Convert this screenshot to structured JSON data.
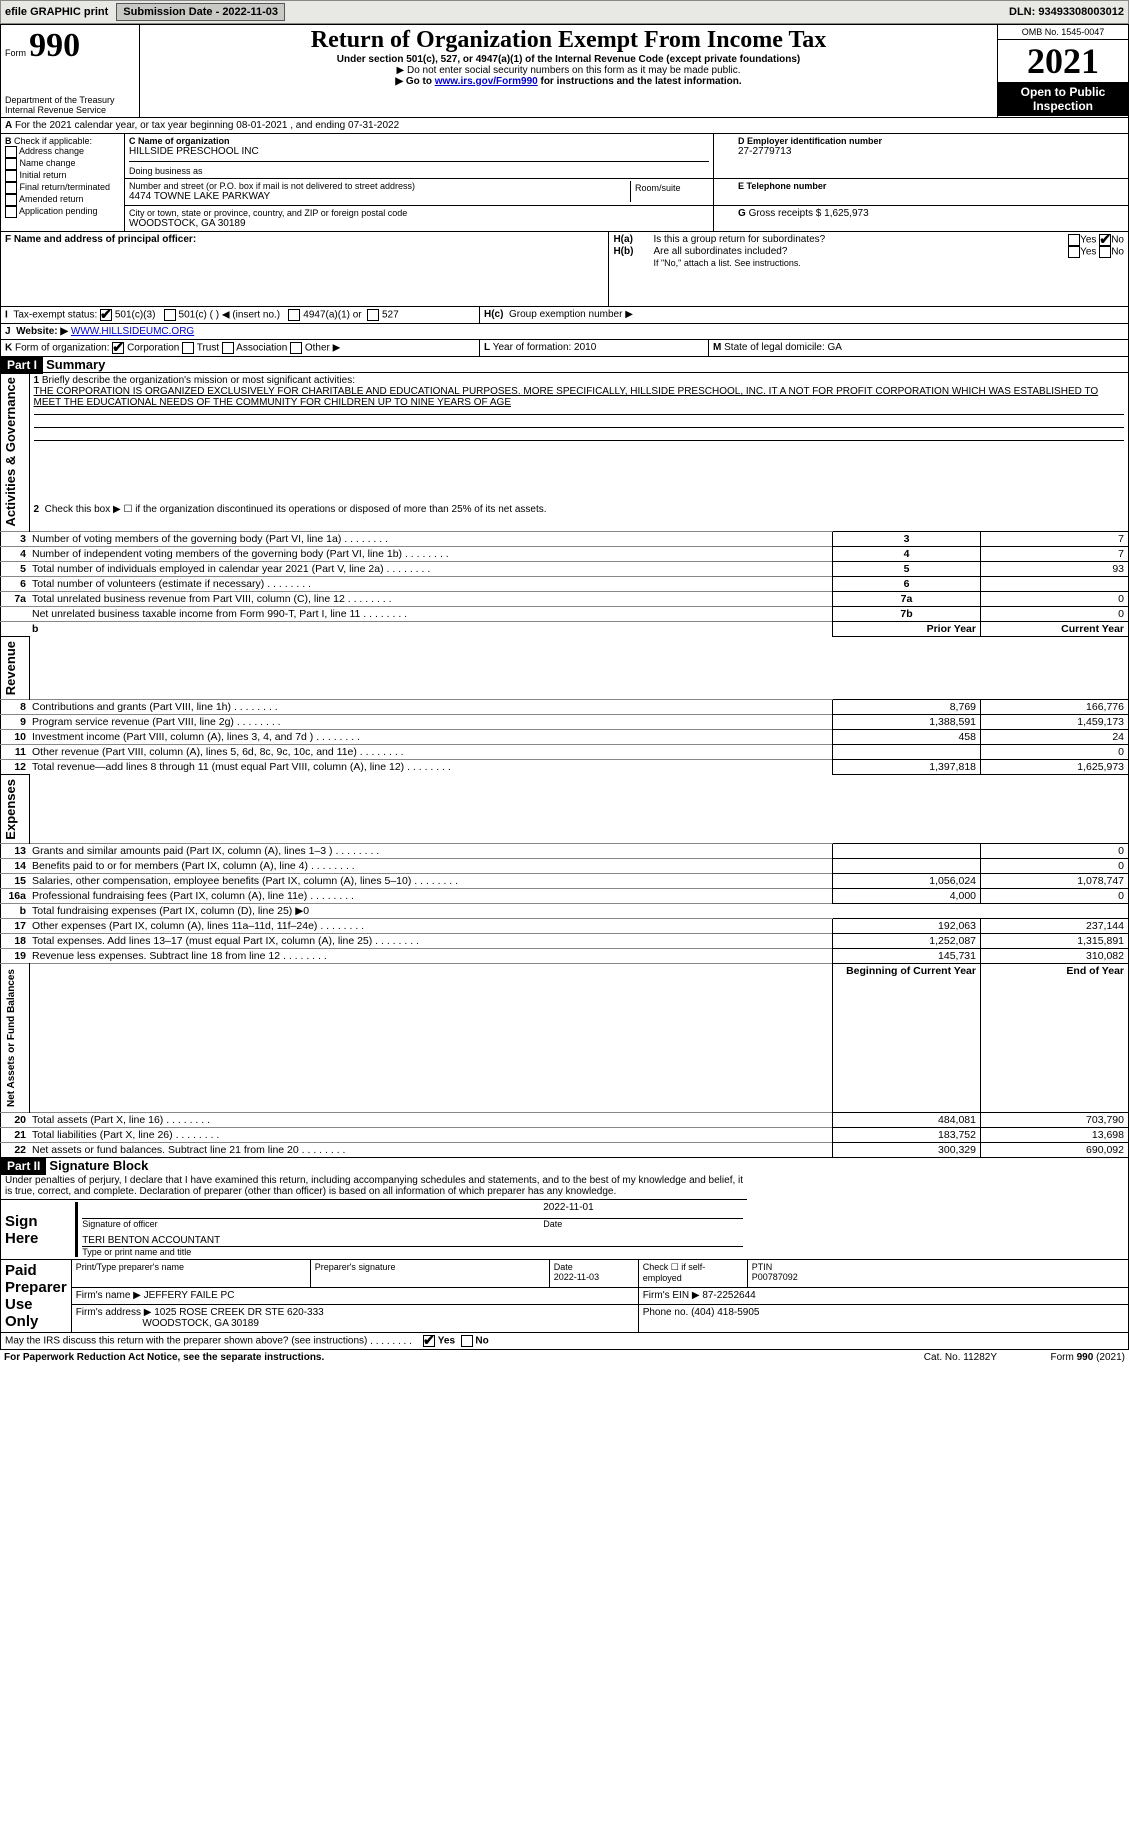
{
  "header_bar": {
    "efile": "efile GRAPHIC print",
    "submission": "Submission Date - 2022-11-03",
    "dln": "DLN: 93493308003012"
  },
  "form_header": {
    "form_label": "Form",
    "form_no": "990",
    "dept": "Department of the Treasury",
    "irs": "Internal Revenue Service",
    "title": "Return of Organization Exempt From Income Tax",
    "subtitle": "Under section 501(c), 527, or 4947(a)(1) of the Internal Revenue Code (except private foundations)",
    "no_ssn": "▶ Do not enter social security numbers on this form as it may be made public.",
    "goto": "▶ Go to ",
    "goto_link": "www.irs.gov/Form990",
    "goto_tail": " for instructions and the latest information.",
    "omb": "OMB No. 1545-0047",
    "year": "2021",
    "inspection": "Open to Public Inspection"
  },
  "section_a": {
    "line_a": "For the 2021 calendar year, or tax year beginning 08-01-2021     , and ending 07-31-2022",
    "check_label": "Check if applicable:",
    "opts": [
      "Address change",
      "Name change",
      "Initial return",
      "Final return/terminated",
      "Amended return",
      "Application pending"
    ],
    "b_heading": "B",
    "c_heading": "C Name of organization",
    "org_name": "HILLSIDE PRESCHOOL INC",
    "dba": "Doing business as",
    "street_label": "Number and street (or P.O. box if mail is not delivered to street address)",
    "room_label": "Room/suite",
    "street": "4474 TOWNE LAKE PARKWAY",
    "city_label": "City or town, state or province, country, and ZIP or foreign postal code",
    "city": "WOODSTOCK, GA  30189",
    "d_heading": "D Employer identification number",
    "ein": "27-2779713",
    "e_heading": "E Telephone number",
    "g_heading": "G",
    "g_label": "Gross receipts $",
    "g_val": "1,625,973",
    "f_heading": "F  Name and address of principal officer:",
    "h_a": "Is this a group return for subordinates?",
    "h_b": "Are all subordinates included?",
    "h_b_note": "If \"No,\" attach a list. See instructions.",
    "h_c": "Group exemption number ▶",
    "h_label_a": "H(a)",
    "h_label_b": "H(b)",
    "h_label_c": "H(c)",
    "yes": "Yes",
    "no": "No"
  },
  "status": {
    "i": "I",
    "label": "Tax-exempt status:",
    "a": "501(c)(3)",
    "b": "501(c) (  ) ◀ (insert no.)",
    "c": "4947(a)(1) or",
    "d": "527"
  },
  "j": {
    "label": "J",
    "text": "Website: ▶",
    "link": "WWW.HILLSIDEUMC.ORG"
  },
  "k": {
    "label": "K",
    "text": "Form of organization:",
    "opts": [
      "Corporation",
      "Trust",
      "Association",
      "Other ▶"
    ]
  },
  "l": {
    "label": "L",
    "text": "Year of formation: 2010"
  },
  "m": {
    "label": "M",
    "text": "State of legal domicile: GA"
  },
  "part1": {
    "title": "Part I",
    "heading": "Summary",
    "line1_label": "1",
    "line1": "Briefly describe the organization's mission or most significant activities:",
    "mission": "THE CORPORATION IS ORGANIZED EXCLUSIVELY FOR CHARITABLE AND EDUCATIONAL PURPOSES. MORE SPECIFICALLY, HILLSIDE PRESCHOOL, INC. IT A NOT FOR PROFIT CORPORATION WHICH WAS ESTABLISHED TO MEET THE EDUCATIONAL NEEDS OF THE COMMUNITY FOR CHILDREN UP TO NINE YEARS OF AGE",
    "line2": "Check this box ▶ ☐  if the organization discontinued its operations or disposed of more than 25% of its net assets.",
    "rows_gov": [
      {
        "n": "3",
        "t": "Number of voting members of the governing body (Part VI, line 1a)",
        "box": "3",
        "v": "7"
      },
      {
        "n": "4",
        "t": "Number of independent voting members of the governing body (Part VI, line 1b)",
        "box": "4",
        "v": "7"
      },
      {
        "n": "5",
        "t": "Total number of individuals employed in calendar year 2021 (Part V, line 2a)",
        "box": "5",
        "v": "93"
      },
      {
        "n": "6",
        "t": "Total number of volunteers (estimate if necessary)",
        "box": "6",
        "v": ""
      },
      {
        "n": "7a",
        "t": "Total unrelated business revenue from Part VIII, column (C), line 12",
        "box": "7a",
        "v": "0"
      },
      {
        "n": "",
        "t": "Net unrelated business taxable income from Form 990-T, Part I, line 11",
        "box": "7b",
        "v": "0"
      }
    ],
    "col_prior": "Prior Year",
    "col_curr": "Current Year",
    "rows_rev": [
      {
        "n": "8",
        "t": "Contributions and grants (Part VIII, line 1h)",
        "p": "8,769",
        "c": "166,776"
      },
      {
        "n": "9",
        "t": "Program service revenue (Part VIII, line 2g)",
        "p": "1,388,591",
        "c": "1,459,173"
      },
      {
        "n": "10",
        "t": "Investment income (Part VIII, column (A), lines 3, 4, and 7d )",
        "p": "458",
        "c": "24"
      },
      {
        "n": "11",
        "t": "Other revenue (Part VIII, column (A), lines 5, 6d, 8c, 9c, 10c, and 11e)",
        "p": "",
        "c": "0"
      },
      {
        "n": "12",
        "t": "Total revenue—add lines 8 through 11 (must equal Part VIII, column (A), line 12)",
        "p": "1,397,818",
        "c": "1,625,973"
      }
    ],
    "rows_exp": [
      {
        "n": "13",
        "t": "Grants and similar amounts paid (Part IX, column (A), lines 1–3 )",
        "p": "",
        "c": "0"
      },
      {
        "n": "14",
        "t": "Benefits paid to or for members (Part IX, column (A), line 4)",
        "p": "",
        "c": "0"
      },
      {
        "n": "15",
        "t": "Salaries, other compensation, employee benefits (Part IX, column (A), lines 5–10)",
        "p": "1,056,024",
        "c": "1,078,747"
      },
      {
        "n": "16a",
        "t": "Professional fundraising fees (Part IX, column (A), line 11e)",
        "p": "4,000",
        "c": "0"
      },
      {
        "n": "b",
        "t": "Total fundraising expenses (Part IX, column (D), line 25) ▶0",
        "p": null,
        "c": null
      },
      {
        "n": "17",
        "t": "Other expenses (Part IX, column (A), lines 11a–11d, 11f–24e)",
        "p": "192,063",
        "c": "237,144"
      },
      {
        "n": "18",
        "t": "Total expenses. Add lines 13–17 (must equal Part IX, column (A), line 25)",
        "p": "1,252,087",
        "c": "1,315,891"
      },
      {
        "n": "19",
        "t": "Revenue less expenses. Subtract line 18 from line 12",
        "p": "145,731",
        "c": "310,082"
      }
    ],
    "col_begin": "Beginning of Current Year",
    "col_end": "End of Year",
    "rows_net": [
      {
        "n": "20",
        "t": "Total assets (Part X, line 16)",
        "p": "484,081",
        "c": "703,790"
      },
      {
        "n": "21",
        "t": "Total liabilities (Part X, line 26)",
        "p": "183,752",
        "c": "13,698"
      },
      {
        "n": "22",
        "t": "Net assets or fund balances. Subtract line 21 from line 20",
        "p": "300,329",
        "c": "690,092"
      }
    ],
    "vlabels": {
      "gov": "Activities & Governance",
      "rev": "Revenue",
      "exp": "Expenses",
      "net": "Net Assets or Fund Balances"
    },
    "b_note": "b"
  },
  "part2": {
    "title": "Part II",
    "heading": "Signature Block",
    "declaration": "Under penalties of perjury, I declare that I have examined this return, including accompanying schedules and statements, and to the best of my knowledge and belief, it is true, correct, and complete. Declaration of preparer (other than officer) is based on all information of which preparer has any knowledge.",
    "sign_here": "Sign Here",
    "sig_officer": "Signature of officer",
    "sig_date": "2022-11-01",
    "date_label": "Date",
    "officer_name": "TERI BENTON  ACCOUNTANT",
    "type_name": "Type or print name and title",
    "paid": "Paid Preparer Use Only",
    "cols": {
      "a": "Print/Type preparer's name",
      "b": "Preparer's signature",
      "c": "Date",
      "d": "Check ☐ if self-employed",
      "e": "PTIN"
    },
    "prep_date": "2022-11-03",
    "ptin": "P00787092",
    "firm_name_l": "Firm's name   ▶",
    "firm_name": "JEFFERY FAILE PC",
    "firm_ein_l": "Firm's EIN ▶",
    "firm_ein": "87-2252644",
    "firm_addr_l": "Firm's address ▶",
    "firm_addr1": "1025 ROSE CREEK DR STE 620-333",
    "firm_addr2": "WOODSTOCK, GA  30189",
    "phone_l": "Phone no.",
    "phone": "(404) 418-5905",
    "discuss": "May the IRS discuss this return with the preparer shown above? (see instructions)",
    "yes": "Yes",
    "no": "No"
  },
  "footer": {
    "pra": "For Paperwork Reduction Act Notice, see the separate instructions.",
    "cat": "Cat. No. 11282Y",
    "form": "Form 990 (2021)"
  }
}
